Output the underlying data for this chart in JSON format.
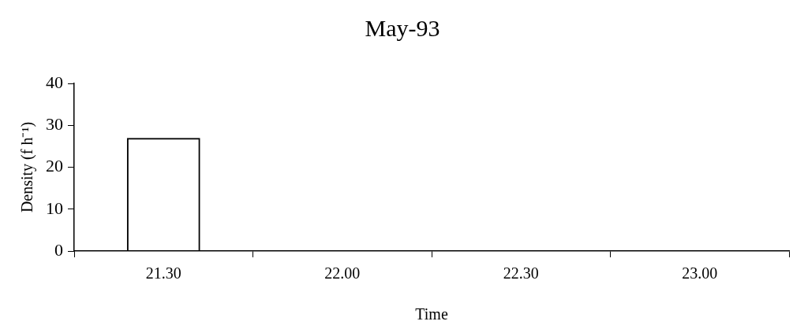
{
  "chart_data": {
    "type": "bar",
    "title": "May-93",
    "xlabel": "Time",
    "ylabel": "Density (f h⁻¹)",
    "categories": [
      "21.30",
      "22.00",
      "22.30",
      "23.00"
    ],
    "values": [
      27,
      0,
      0,
      0
    ],
    "color": "#000000",
    "ylim": [
      0,
      40
    ],
    "yticks": [
      0,
      10,
      20,
      30,
      40
    ],
    "grid": false,
    "legend": false
  }
}
